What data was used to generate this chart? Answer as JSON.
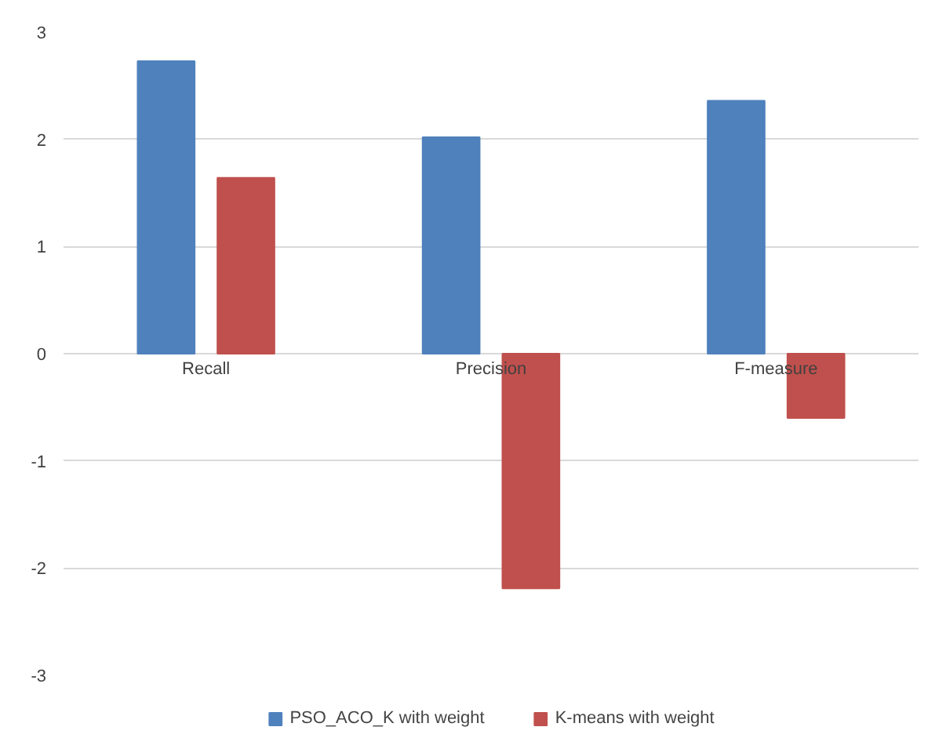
{
  "chart_data": {
    "type": "bar",
    "categories": [
      "Recall",
      "Precision",
      "F-measure"
    ],
    "series": [
      {
        "name": "PSO_ACO_K with weight",
        "color": "#4f81bd",
        "values": [
          2.73,
          2.02,
          2.36
        ]
      },
      {
        "name": "K-means with weight",
        "color": "#c0504d",
        "values": [
          1.64,
          -2.19,
          -0.6
        ]
      }
    ],
    "ylim": [
      -3,
      3
    ],
    "yticks": [
      -3,
      -2,
      -1,
      0,
      1,
      2,
      3
    ],
    "grid": "y",
    "legend": "bottom"
  }
}
